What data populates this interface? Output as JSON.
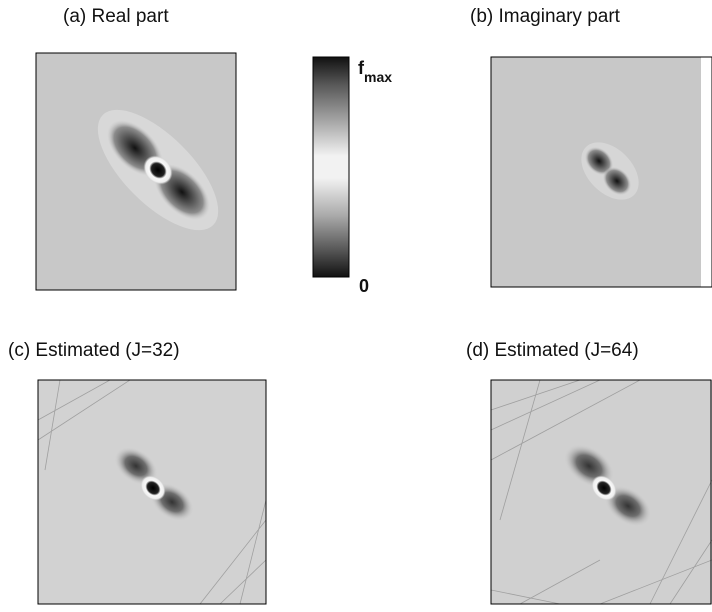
{
  "panels": [
    {
      "title": "(a) Real part"
    },
    {
      "title": "(b) Imaginary part"
    },
    {
      "title": "(c) Estimated (J=32)"
    },
    {
      "title": "(d) Estimated (J=64)"
    }
  ],
  "colorbar": {
    "top_label": {
      "main": "f",
      "sub": "max"
    },
    "bottom_label": "0"
  }
}
